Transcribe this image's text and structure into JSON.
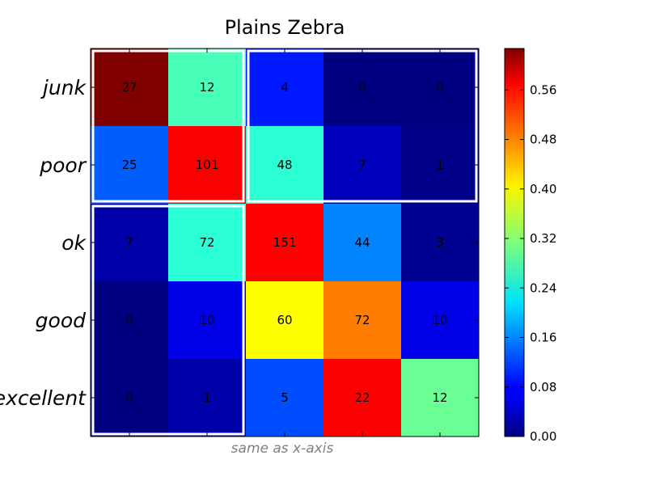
{
  "chart_data": {
    "type": "heatmap",
    "title": "Plains Zebra",
    "xlabel": "same as x-axis",
    "ylabel": "",
    "y_categories": [
      "junk",
      "poor",
      "ok",
      "good",
      "excellent"
    ],
    "values": [
      [
        27,
        12,
        4,
        0,
        0
      ],
      [
        25,
        101,
        48,
        7,
        1
      ],
      [
        7,
        72,
        151,
        44,
        3
      ],
      [
        0,
        10,
        60,
        72,
        10
      ],
      [
        0,
        1,
        5,
        22,
        12
      ]
    ],
    "color_values": [
      [
        0.627,
        0.279,
        0.093,
        0.0,
        0.0
      ],
      [
        0.136,
        0.552,
        0.262,
        0.038,
        0.005
      ],
      [
        0.025,
        0.261,
        0.548,
        0.16,
        0.011
      ],
      [
        0.0,
        0.065,
        0.392,
        0.471,
        0.065
      ],
      [
        0.0,
        0.025,
        0.125,
        0.55,
        0.3
      ]
    ],
    "colorscale": "jet",
    "color_range": [
      0,
      0.627
    ],
    "colorbar_ticks": [
      "0.00",
      "0.08",
      "0.16",
      "0.24",
      "0.32",
      "0.40",
      "0.48",
      "0.56"
    ],
    "highlight_boxes": [
      {
        "rows": [
          0,
          1
        ],
        "cols": [
          0,
          1
        ]
      },
      {
        "rows": [
          0,
          1
        ],
        "cols": [
          2,
          4
        ]
      },
      {
        "rows": [
          2,
          4
        ],
        "cols": [
          0,
          1
        ]
      }
    ],
    "highlight_color": "#ffffff",
    "grid": false
  }
}
